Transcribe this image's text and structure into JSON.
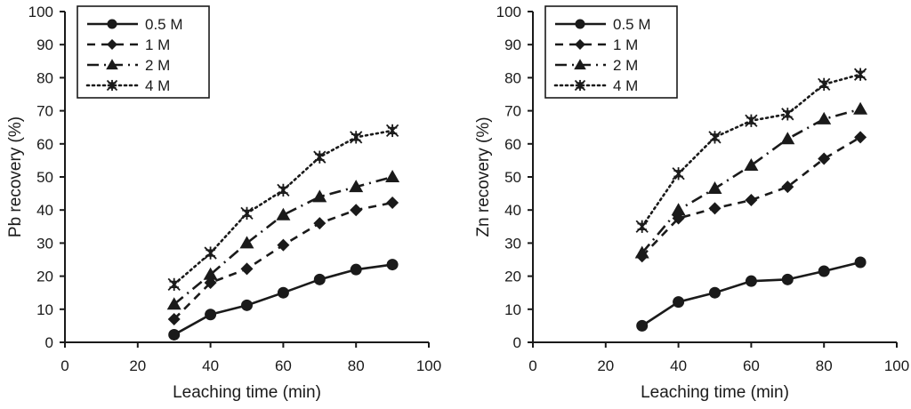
{
  "chart_data": [
    {
      "type": "line",
      "title": "",
      "xlabel": "Leaching time (min)",
      "ylabel": "Pb recovery (%)",
      "xlim": [
        0,
        100
      ],
      "ylim": [
        0,
        100
      ],
      "xticks": [
        "0",
        "20",
        "40",
        "60",
        "80",
        "100"
      ],
      "yticks": [
        "0",
        "10",
        "20",
        "30",
        "40",
        "50",
        "60",
        "70",
        "80",
        "90",
        "100"
      ],
      "grid": false,
      "legend_position": "top-left",
      "x": [
        30,
        40,
        50,
        60,
        70,
        80,
        90
      ],
      "series": [
        {
          "name": "0.5 M",
          "marker": "circle",
          "line": "solid",
          "values": [
            2.3,
            8.4,
            11.2,
            15,
            19,
            22,
            23.5
          ]
        },
        {
          "name": "1 M",
          "marker": "diamond",
          "line": "dashed",
          "values": [
            7,
            18,
            22.2,
            29.4,
            36,
            40,
            42.2
          ]
        },
        {
          "name": "2 M",
          "marker": "triangle",
          "line": "dash-dot",
          "values": [
            11.5,
            20.5,
            30,
            38.5,
            44,
            47,
            50
          ]
        },
        {
          "name": "4 M",
          "marker": "asterisk",
          "line": "dotted",
          "values": [
            17.5,
            27,
            39,
            46,
            56,
            62,
            64
          ]
        }
      ]
    },
    {
      "type": "line",
      "title": "",
      "xlabel": "Leaching time (min)",
      "ylabel": "Zn recovery (%)",
      "xlim": [
        0,
        100
      ],
      "ylim": [
        0,
        100
      ],
      "xticks": [
        "0",
        "20",
        "40",
        "60",
        "80",
        "100"
      ],
      "yticks": [
        "0",
        "10",
        "20",
        "30",
        "40",
        "50",
        "60",
        "70",
        "80",
        "90",
        "100"
      ],
      "grid": false,
      "legend_position": "top-left",
      "x": [
        30,
        40,
        50,
        60,
        70,
        80,
        90
      ],
      "series": [
        {
          "name": "0.5 M",
          "marker": "circle",
          "line": "solid",
          "values": [
            5,
            12.2,
            15,
            18.5,
            19,
            21.5,
            24.2
          ]
        },
        {
          "name": "1 M",
          "marker": "diamond",
          "line": "dashed",
          "values": [
            26,
            37.5,
            40.5,
            43,
            47,
            55.5,
            62
          ]
        },
        {
          "name": "2 M",
          "marker": "triangle",
          "line": "dash-dot",
          "values": [
            27,
            40,
            46.5,
            53.5,
            61.5,
            67.5,
            70.5
          ]
        },
        {
          "name": "4 M",
          "marker": "asterisk",
          "line": "dotted",
          "values": [
            35,
            51,
            62,
            67,
            69,
            78,
            81
          ]
        }
      ]
    }
  ],
  "colors": {
    "ink": "#1a1a1a",
    "background": "#ffffff"
  }
}
